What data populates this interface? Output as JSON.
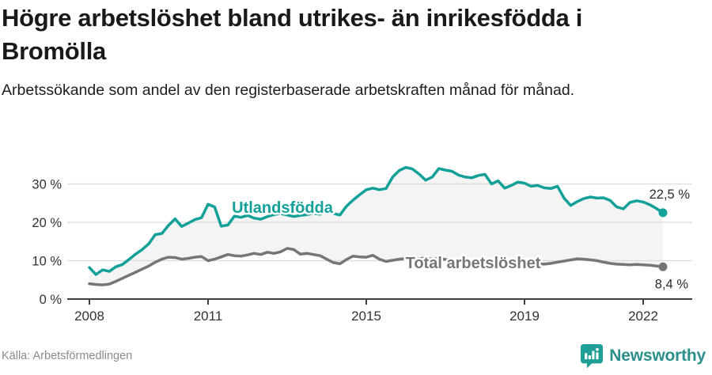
{
  "header": {
    "title": "Högre arbetslöshet bland utrikes- än inrikesfödda i Bromölla",
    "subtitle": "Arbetssökande som andel av den registerbaserade arbetskraften månad för månad."
  },
  "chart_data": {
    "type": "line",
    "title": "Högre arbetslöshet bland utrikes- än inrikesfödda i Bromölla",
    "x_unit": "year (monthly data, sampled every 2 months)",
    "y_unit": "%",
    "x_start": 2008.0,
    "x_step": 0.166667,
    "xlim": [
      2007.45,
      2022.8
    ],
    "ylim": [
      0,
      38
    ],
    "grid": "horizontal",
    "band_fill": "#F4F4F4",
    "xticks": [
      {
        "value": 2008,
        "label": "2008"
      },
      {
        "value": 2011,
        "label": "2011"
      },
      {
        "value": 2015,
        "label": "2015"
      },
      {
        "value": 2019,
        "label": "2019"
      },
      {
        "value": 2022,
        "label": "2022"
      }
    ],
    "yticks": [
      {
        "value": 0,
        "label": "0 %"
      },
      {
        "value": 10,
        "label": "10 %"
      },
      {
        "value": 20,
        "label": "20 %"
      },
      {
        "value": 30,
        "label": "30 %"
      }
    ],
    "series": [
      {
        "name": "Utlandsfödda",
        "color": "#12A099",
        "end_label": "22,5 %",
        "end_value": 22.5,
        "label_pos": {
          "year": 2012.88,
          "value": 23.9
        },
        "end_label_offset": [
          34,
          -18
        ],
        "values": [
          8.2,
          6.4,
          7.6,
          7.2,
          8.4,
          9.0,
          10.3,
          11.7,
          12.9,
          14.4,
          16.8,
          17.1,
          19.2,
          20.9,
          18.9,
          19.8,
          20.7,
          21.2,
          24.7,
          24.0,
          19.0,
          19.3,
          21.6,
          21.3,
          21.8,
          21.1,
          20.8,
          21.5,
          22.0,
          22.3,
          21.9,
          21.5,
          21.8,
          22.0,
          22.3,
          22.1,
          22.8,
          22.3,
          21.9,
          24.2,
          25.8,
          27.2,
          28.5,
          28.9,
          28.5,
          28.8,
          31.8,
          33.5,
          34.3,
          33.9,
          32.6,
          31.0,
          31.8,
          34.0,
          33.6,
          33.3,
          32.3,
          31.8,
          31.6,
          32.2,
          32.5,
          30.0,
          30.8,
          28.9,
          29.6,
          30.5,
          30.2,
          29.4,
          29.6,
          29.0,
          28.8,
          29.4,
          26.3,
          24.4,
          25.4,
          26.2,
          26.6,
          26.3,
          26.4,
          25.7,
          24.0,
          23.5,
          25.2,
          25.6,
          25.3,
          24.6,
          23.6,
          22.5
        ]
      },
      {
        "name": "Total arbetslöshet",
        "color": "#76767A",
        "end_label": "8,4 %",
        "end_value": 8.4,
        "label_pos": {
          "year": 2017.7,
          "value": 9.5
        },
        "end_label_offset": [
          32,
          27
        ],
        "values": [
          4.0,
          3.8,
          3.7,
          3.9,
          4.6,
          5.4,
          6.2,
          7.0,
          7.8,
          8.6,
          9.6,
          10.4,
          10.9,
          10.8,
          10.4,
          10.6,
          10.9,
          11.1,
          10.0,
          10.4,
          11.0,
          11.6,
          11.3,
          11.2,
          11.5,
          11.9,
          11.6,
          12.2,
          11.9,
          12.3,
          13.2,
          12.9,
          11.7,
          11.9,
          11.6,
          11.3,
          10.4,
          9.5,
          9.2,
          10.3,
          11.2,
          11.0,
          10.9,
          11.4,
          10.4,
          9.8,
          10.1,
          10.4,
          10.6,
          10.3,
          10.5,
          10.7,
          10.4,
          10.6,
          10.3,
          10.1,
          10.2,
          9.9,
          10.0,
          9.8,
          9.6,
          9.4,
          9.5,
          9.3,
          9.4,
          9.2,
          9.1,
          9.0,
          9.2,
          9.1,
          9.3,
          9.6,
          9.9,
          10.2,
          10.5,
          10.4,
          10.2,
          10.0,
          9.6,
          9.3,
          9.1,
          9.0,
          8.9,
          9.0,
          8.9,
          8.8,
          8.6,
          8.4
        ]
      }
    ],
    "colors": {
      "grid": "#DBDBDB",
      "axis": "#404040",
      "tick_text": "#333333",
      "annotation_text": "#2B2B2B"
    }
  },
  "footer": {
    "source": "Källa: Arbetsförmedlingen",
    "brand": "Newsworthy"
  }
}
